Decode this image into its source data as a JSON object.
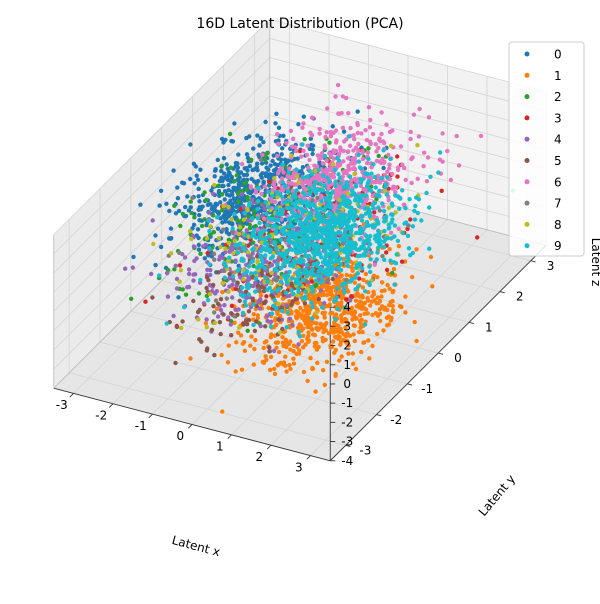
{
  "chart_data": {
    "type": "scatter",
    "title": "16D Latent Distribution (PCA)",
    "xlabel": "Latent x",
    "ylabel": "Latent y",
    "zlabel": "Latent z",
    "projection": "3d",
    "grid": true,
    "legend_position": "top-right",
    "xlim": [
      -3.5,
      3.5
    ],
    "ylim": [
      -3.5,
      3.5
    ],
    "zlim": [
      -4,
      4
    ],
    "xticks": [
      "-3",
      "-2",
      "-1",
      "0",
      "1",
      "2",
      "3"
    ],
    "yticks": [
      "-3",
      "-2",
      "-1",
      "0",
      "1",
      "2",
      "3"
    ],
    "zticks": [
      "-4",
      "-3",
      "-2",
      "-1",
      "0",
      "1",
      "2",
      "3",
      "4"
    ],
    "series": [
      {
        "name": "0",
        "color": "#1f77b4",
        "center": [
          -1.6,
          0.8,
          0.2
        ],
        "spread": 0.8,
        "count": 700
      },
      {
        "name": "1",
        "color": "#ff7f0e",
        "center": [
          1.2,
          -0.9,
          -1.4
        ],
        "spread": 0.8,
        "count": 700
      },
      {
        "name": "2",
        "color": "#2ca02c",
        "center": [
          -1.0,
          0.4,
          0.0
        ],
        "spread": 1.0,
        "count": 220
      },
      {
        "name": "3",
        "color": "#d62728",
        "center": [
          0.0,
          0.5,
          -0.6
        ],
        "spread": 1.0,
        "count": 160
      },
      {
        "name": "4",
        "color": "#9467bd",
        "center": [
          -0.6,
          -0.6,
          -0.5
        ],
        "spread": 0.9,
        "count": 300
      },
      {
        "name": "5",
        "color": "#8c564b",
        "center": [
          -0.1,
          -1.1,
          -1.2
        ],
        "spread": 0.7,
        "count": 110
      },
      {
        "name": "6",
        "color": "#e377c2",
        "center": [
          0.0,
          1.2,
          1.2
        ],
        "spread": 0.8,
        "count": 550
      },
      {
        "name": "7",
        "color": "#7f7f7f",
        "center": [
          0.0,
          0.0,
          -0.3
        ],
        "spread": 1.0,
        "count": 90
      },
      {
        "name": "8",
        "color": "#bcbd22",
        "center": [
          -0.2,
          0.0,
          -0.2
        ],
        "spread": 1.0,
        "count": 160
      },
      {
        "name": "9",
        "color": "#17becf",
        "center": [
          0.4,
          0.2,
          0.1
        ],
        "spread": 0.85,
        "count": 900
      }
    ]
  }
}
